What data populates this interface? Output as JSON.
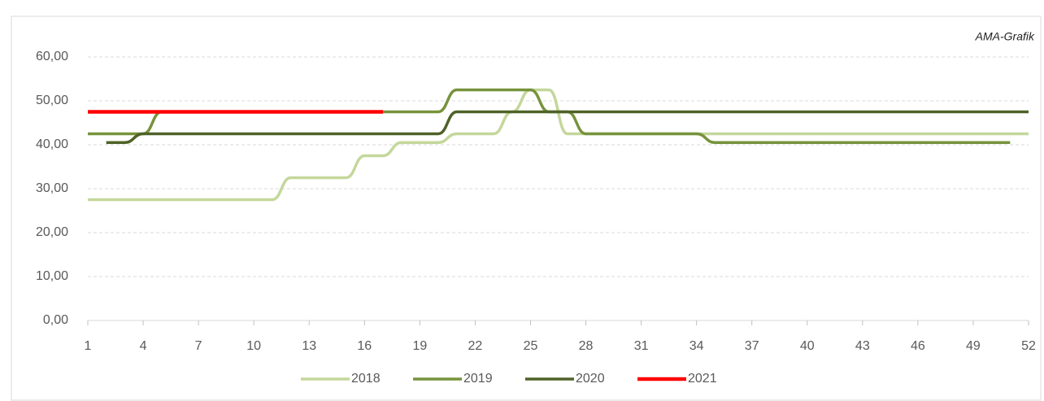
{
  "chart_data": {
    "type": "line",
    "annotation": "AMA-Grafik",
    "x": [
      1,
      2,
      3,
      4,
      5,
      6,
      7,
      8,
      9,
      10,
      11,
      12,
      13,
      14,
      15,
      16,
      17,
      18,
      19,
      20,
      21,
      22,
      23,
      24,
      25,
      26,
      27,
      28,
      29,
      30,
      31,
      32,
      33,
      34,
      35,
      36,
      37,
      38,
      39,
      40,
      41,
      42,
      43,
      44,
      45,
      46,
      47,
      48,
      49,
      50,
      51,
      52
    ],
    "series": [
      {
        "name": "2018",
        "color": "#c4d79b",
        "values": [
          27.5,
          27.5,
          27.5,
          27.5,
          27.5,
          27.5,
          27.5,
          27.5,
          27.5,
          27.5,
          27.5,
          32.5,
          32.5,
          32.5,
          32.5,
          37.5,
          37.5,
          40.5,
          40.5,
          40.5,
          42.5,
          42.5,
          42.5,
          47.5,
          52.5,
          52.5,
          42.5,
          42.5,
          42.5,
          42.5,
          42.5,
          42.5,
          42.5,
          42.5,
          42.5,
          42.5,
          42.5,
          42.5,
          42.5,
          42.5,
          42.5,
          42.5,
          42.5,
          42.5,
          42.5,
          42.5,
          42.5,
          42.5,
          42.5,
          42.5,
          42.5,
          42.5
        ]
      },
      {
        "name": "2019",
        "color": "#77933c",
        "values": [
          42.5,
          42.5,
          42.5,
          42.5,
          47.5,
          47.5,
          47.5,
          47.5,
          47.5,
          47.5,
          47.5,
          47.5,
          47.5,
          47.5,
          47.5,
          47.5,
          47.5,
          47.5,
          47.5,
          47.5,
          52.5,
          52.5,
          52.5,
          52.5,
          52.5,
          47.5,
          47.5,
          42.5,
          42.5,
          42.5,
          42.5,
          42.5,
          42.5,
          42.5,
          40.5,
          40.5,
          40.5,
          40.5,
          40.5,
          40.5,
          40.5,
          40.5,
          40.5,
          40.5,
          40.5,
          40.5,
          40.5,
          40.5,
          40.5,
          40.5,
          40.5,
          null
        ]
      },
      {
        "name": "2020",
        "color": "#4f6228",
        "values": [
          null,
          40.5,
          40.5,
          42.5,
          42.5,
          42.5,
          42.5,
          42.5,
          42.5,
          42.5,
          42.5,
          42.5,
          42.5,
          42.5,
          42.5,
          42.5,
          42.5,
          42.5,
          42.5,
          42.5,
          47.5,
          47.5,
          47.5,
          47.5,
          47.5,
          47.5,
          47.5,
          47.5,
          47.5,
          47.5,
          47.5,
          47.5,
          47.5,
          47.5,
          47.5,
          47.5,
          47.5,
          47.5,
          47.5,
          47.5,
          47.5,
          47.5,
          47.5,
          47.5,
          47.5,
          47.5,
          47.5,
          47.5,
          47.5,
          47.5,
          47.5,
          47.5
        ]
      },
      {
        "name": "2021",
        "color": "#ff0000",
        "values": [
          47.5,
          47.5,
          47.5,
          47.5,
          47.5,
          47.5,
          47.5,
          47.5,
          47.5,
          47.5,
          47.5,
          47.5,
          47.5,
          47.5,
          47.5,
          47.5,
          47.5,
          null,
          null,
          null,
          null,
          null,
          null,
          null,
          null,
          null,
          null,
          null,
          null,
          null,
          null,
          null,
          null,
          null,
          null,
          null,
          null,
          null,
          null,
          null,
          null,
          null,
          null,
          null,
          null,
          null,
          null,
          null,
          null,
          null,
          null,
          null
        ]
      }
    ],
    "xlim": [
      1,
      52
    ],
    "xticks": [
      1,
      4,
      7,
      10,
      13,
      16,
      19,
      22,
      25,
      28,
      31,
      34,
      37,
      40,
      43,
      46,
      49,
      52
    ],
    "ylim": [
      0,
      60
    ],
    "yticks": [
      {
        "value": 0,
        "label": "0,00"
      },
      {
        "value": 10,
        "label": "10,00"
      },
      {
        "value": 20,
        "label": "20,00"
      },
      {
        "value": 30,
        "label": "30,00"
      },
      {
        "value": 40,
        "label": "40,00"
      },
      {
        "value": 50,
        "label": "50,00"
      },
      {
        "value": 60,
        "label": "60,00"
      }
    ],
    "grid": true,
    "legend": "bottom"
  }
}
